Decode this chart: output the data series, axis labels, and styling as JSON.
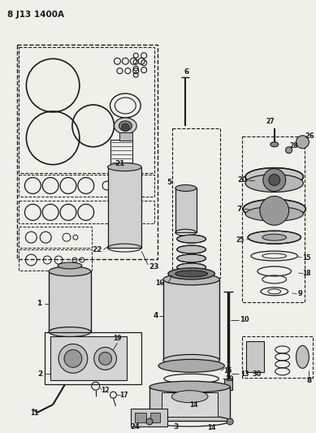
{
  "title": "8 J13 1400A",
  "bg_color": "#f0f0eb",
  "line_color": "#1a1a1a",
  "fig_width": 3.89,
  "fig_height": 5.33,
  "dpi": 100
}
